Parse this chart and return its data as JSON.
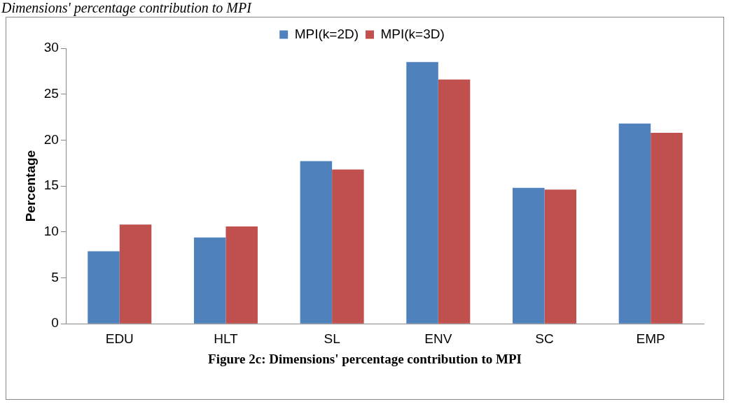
{
  "chart_data": {
    "type": "bar",
    "title": "Dimensions' percentage contribution to MPI",
    "ylabel": "Percentage",
    "categories": [
      "EDU",
      "HLT",
      "SL",
      "ENV",
      "SC",
      "EMP"
    ],
    "series": [
      {
        "name": "MPI(k=2D)",
        "color": "#4f81bd",
        "values": [
          7.9,
          9.4,
          17.7,
          28.5,
          14.8,
          21.8
        ]
      },
      {
        "name": "MPI(k=3D)",
        "color": "#c0504d",
        "values": [
          10.8,
          10.6,
          16.8,
          26.6,
          14.6,
          20.8
        ]
      }
    ],
    "ylim": [
      0,
      30
    ],
    "yticks": [
      0,
      5,
      10,
      15,
      20,
      25,
      30
    ],
    "grid": false,
    "legend": "top",
    "annotations": [
      "Figure 2c: Dimensions' percentage contribution to MPI"
    ]
  }
}
